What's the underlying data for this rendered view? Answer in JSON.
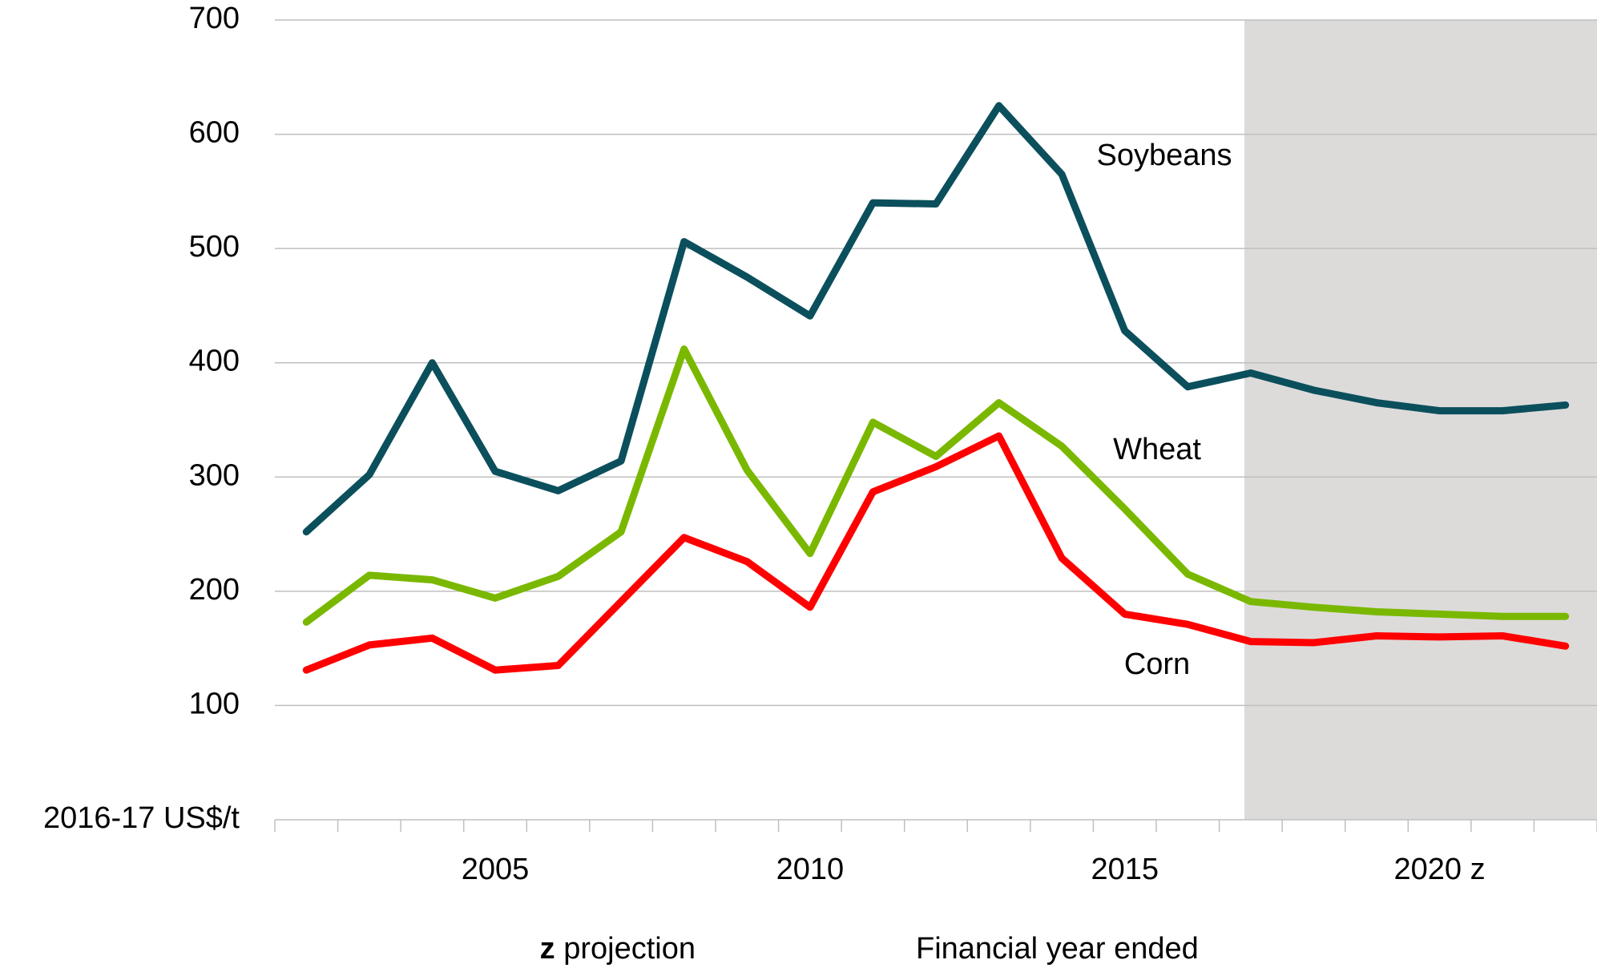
{
  "chart_data": {
    "type": "line",
    "categories": [
      null,
      null,
      null,
      "2005",
      null,
      null,
      null,
      null,
      "2010",
      null,
      null,
      null,
      null,
      "2015",
      null,
      null,
      null,
      null,
      "2020 z",
      null,
      null
    ],
    "series": [
      {
        "name": "Soybeans",
        "color": "#0b4f5c",
        "values": [
          252,
          302,
          400,
          305,
          288,
          314,
          506,
          475,
          441,
          540,
          539,
          625,
          565,
          428,
          379,
          391,
          376,
          365,
          358,
          358,
          363
        ]
      },
      {
        "name": "Wheat",
        "color": "#7ab800",
        "values": [
          173,
          214,
          210,
          194,
          213,
          252,
          412,
          306,
          233,
          348,
          318,
          365,
          327,
          272,
          215,
          191,
          186,
          182,
          180,
          178,
          178
        ]
      },
      {
        "name": "Corn",
        "color": "#ff0000",
        "values": [
          131,
          153,
          159,
          131,
          135,
          191,
          247,
          226,
          186,
          287,
          309,
          336,
          229,
          180,
          171,
          156,
          155,
          161,
          160,
          161,
          152
        ]
      }
    ],
    "ylim": [
      0,
      700
    ],
    "yticks": [
      100,
      200,
      300,
      400,
      500,
      600,
      700
    ],
    "grid": true,
    "y_label": "2016-17 US$/t",
    "x_label": "Financial year ended",
    "footnote_symbol": "z",
    "footnote_text": "projection"
  }
}
